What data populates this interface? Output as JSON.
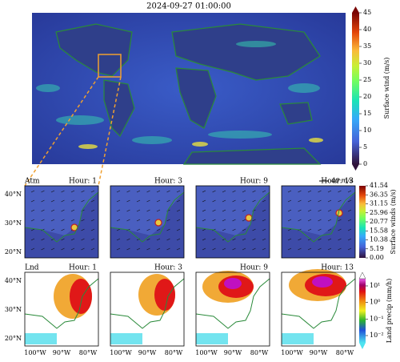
{
  "title": "2024-09-27 01:00:00",
  "main_colorbar": {
    "label": "Surface wind (m/s)",
    "ticks": [
      "0",
      "5",
      "10",
      "15",
      "20",
      "25",
      "30",
      "35",
      "40",
      "45"
    ]
  },
  "atm_row": {
    "row_label": "Atm",
    "panels": [
      "Hour: 1",
      "Hour: 3",
      "Hour: 9",
      "Hour: 13"
    ],
    "scale_label": "40 m/s",
    "colorbar": {
      "label": "Surface winds (m/s)",
      "ticks": [
        "0.00",
        "5.19",
        "10.38",
        "15.58",
        "20.77",
        "25.96",
        "31.15",
        "36.35",
        "41.54"
      ]
    }
  },
  "lnd_row": {
    "row_label": "Lnd",
    "panels": [
      "Hour: 1",
      "Hour: 3",
      "Hour: 9",
      "Hour: 13"
    ],
    "colorbar": {
      "label": "Land precip (mm/h)",
      "ticks": [
        "10⁻²",
        "10⁻¹",
        "10⁰",
        "10¹"
      ]
    }
  },
  "lat_ticks": [
    "40°N",
    "30°N",
    "20°N"
  ],
  "lon_ticks": [
    "100°W",
    "90°W",
    "80°W"
  ]
}
